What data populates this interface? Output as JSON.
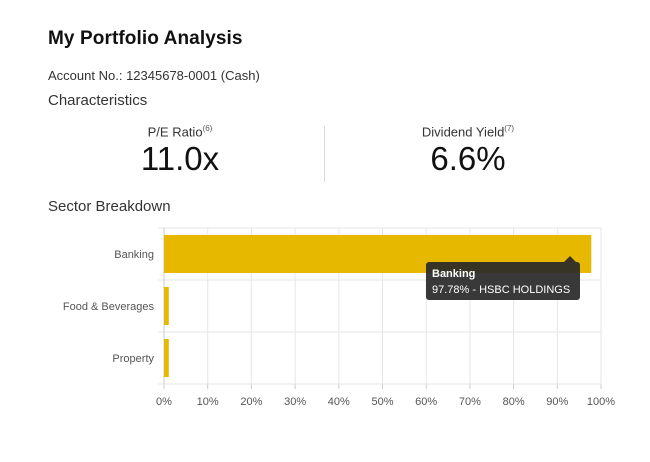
{
  "header": {
    "title": "My Portfolio Analysis",
    "account_label": "Account No.:",
    "account_value": "12345678-0001 (Cash)"
  },
  "characteristics": {
    "heading": "Characteristics",
    "pe": {
      "label": "P/E Ratio",
      "note": "(6)",
      "value": "11.0x"
    },
    "dividend": {
      "label": "Dividend Yield",
      "note": "(7)",
      "value": "6.6%"
    }
  },
  "sector": {
    "heading": "Sector Breakdown"
  },
  "chart_data": {
    "type": "bar",
    "orientation": "horizontal",
    "categories": [
      "Banking",
      "Food & Beverages",
      "Property"
    ],
    "values": [
      97.78,
      1.1,
      1.1
    ],
    "xlim": [
      0,
      100
    ],
    "xticks": [
      "0%",
      "10%",
      "20%",
      "30%",
      "40%",
      "50%",
      "60%",
      "70%",
      "80%",
      "90%",
      "100%"
    ],
    "grid": true,
    "bar_color": "#e6b800",
    "tooltip": {
      "title": "Banking",
      "text": "97.78% - HSBC HOLDINGS"
    }
  }
}
